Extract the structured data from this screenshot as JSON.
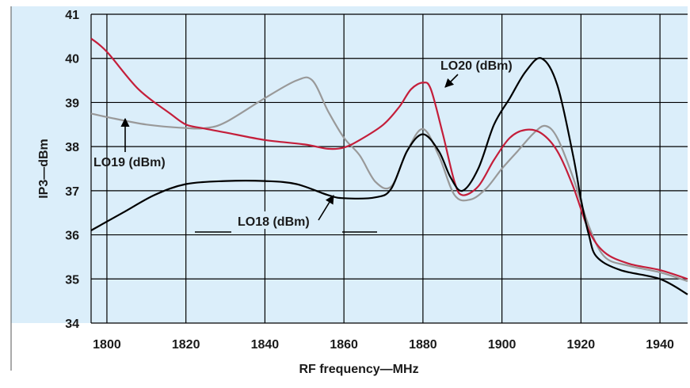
{
  "chart_data": {
    "type": "line",
    "title": "",
    "xlabel": "RF frequency—MHz",
    "ylabel": "IP3—dBm",
    "xlim": [
      1796,
      1947
    ],
    "ylim": [
      34,
      41
    ],
    "xticks": [
      1800,
      1820,
      1840,
      1860,
      1880,
      1900,
      1920,
      1940
    ],
    "yticks": [
      34,
      35,
      36,
      37,
      38,
      39,
      40,
      41
    ],
    "grid": true,
    "background": "#dbeefa",
    "series": [
      {
        "name": "LO18 (dBm)",
        "color": "#000000",
        "x": [
          1796,
          1804,
          1812,
          1820,
          1830,
          1840,
          1848,
          1856,
          1860,
          1868,
          1872,
          1876,
          1880,
          1884,
          1887,
          1890,
          1894,
          1898,
          1902,
          1906,
          1910,
          1914,
          1918,
          1920,
          1922,
          1924,
          1930,
          1940,
          1947
        ],
        "y": [
          36.1,
          36.5,
          36.9,
          37.15,
          37.22,
          37.22,
          37.15,
          36.9,
          36.83,
          36.85,
          37.05,
          37.9,
          38.28,
          37.9,
          37.3,
          37.0,
          37.5,
          38.5,
          39.1,
          39.7,
          40.0,
          39.4,
          37.8,
          36.8,
          36.0,
          35.5,
          35.2,
          35.0,
          34.65
        ]
      },
      {
        "name": "LO19 (dBm)",
        "color": "#999999",
        "x": [
          1796,
          1800,
          1810,
          1820,
          1825,
          1830,
          1840,
          1848,
          1852,
          1856,
          1860,
          1864,
          1868,
          1872,
          1876,
          1880,
          1884,
          1888,
          1892,
          1896,
          1900,
          1904,
          1908,
          1911,
          1914,
          1918,
          1922,
          1926,
          1932,
          1940,
          1947
        ],
        "y": [
          38.75,
          38.67,
          38.5,
          38.42,
          38.42,
          38.55,
          39.1,
          39.5,
          39.5,
          38.8,
          38.2,
          37.8,
          37.2,
          37.1,
          37.9,
          38.4,
          37.8,
          36.9,
          36.8,
          37.05,
          37.5,
          37.9,
          38.3,
          38.47,
          38.2,
          37.3,
          36.2,
          35.5,
          35.3,
          35.15,
          34.95
        ]
      },
      {
        "name": "LO20 (dBm)",
        "color": "#c41e3a",
        "x": [
          1796,
          1800,
          1808,
          1816,
          1820,
          1824,
          1830,
          1840,
          1850,
          1856,
          1860,
          1864,
          1870,
          1874,
          1877,
          1880,
          1882,
          1885,
          1888,
          1890,
          1894,
          1898,
          1902,
          1906,
          1910,
          1914,
          1918,
          1922,
          1926,
          1932,
          1940,
          1947
        ],
        "y": [
          40.45,
          40.15,
          39.3,
          38.75,
          38.5,
          38.42,
          38.32,
          38.15,
          38.05,
          37.95,
          37.98,
          38.15,
          38.5,
          38.9,
          39.3,
          39.45,
          39.3,
          38.3,
          37.2,
          36.9,
          37.1,
          37.7,
          38.2,
          38.38,
          38.3,
          37.9,
          37.1,
          36.1,
          35.6,
          35.35,
          35.2,
          35.0
        ]
      }
    ],
    "annotations": [
      {
        "text": "LO20 (dBm)"
      },
      {
        "text": "LO19 (dBm)"
      },
      {
        "text": "LO18 (dBm)"
      }
    ]
  }
}
